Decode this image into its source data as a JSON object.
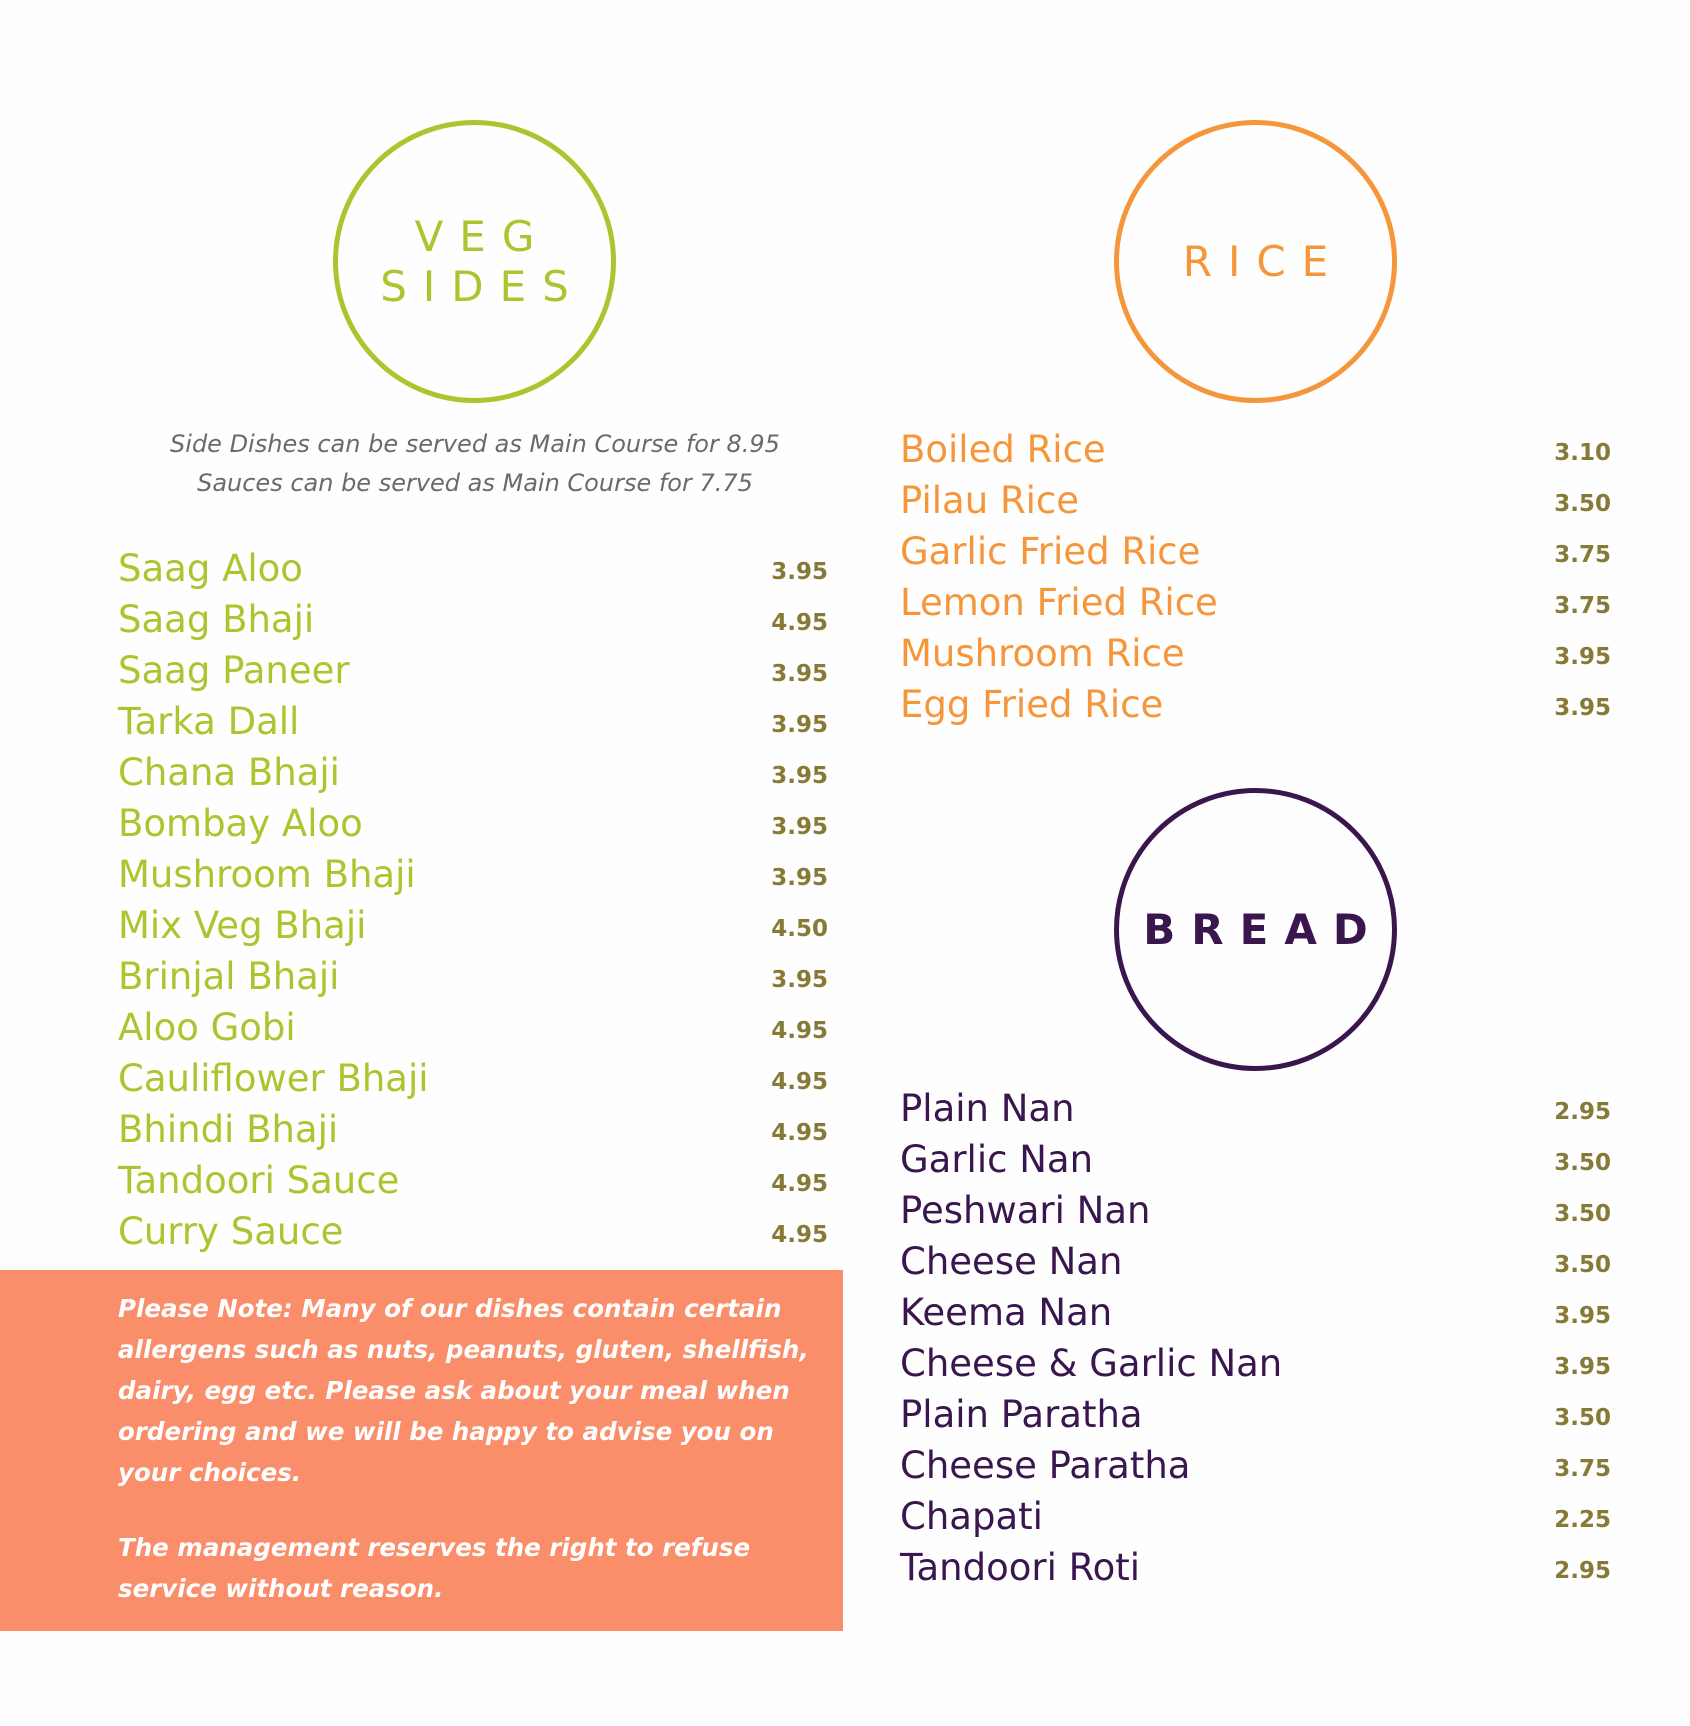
{
  "veg_sides": {
    "title_line1": "VEG",
    "title_line2": "SIDES",
    "note_line1": "Side Dishes can be served as Main Course for 8.95",
    "note_line2": "Sauces can be served as Main Course for 7.75",
    "items": [
      {
        "name": "Saag Aloo",
        "price": "3.95"
      },
      {
        "name": "Saag Bhaji",
        "price": "4.95"
      },
      {
        "name": "Saag Paneer",
        "price": "3.95"
      },
      {
        "name": "Tarka Dall",
        "price": "3.95"
      },
      {
        "name": "Chana Bhaji",
        "price": "3.95"
      },
      {
        "name": "Bombay Aloo",
        "price": "3.95"
      },
      {
        "name": "Mushroom Bhaji",
        "price": "3.95"
      },
      {
        "name": "Mix Veg Bhaji",
        "price": "4.50"
      },
      {
        "name": "Brinjal Bhaji",
        "price": "3.95"
      },
      {
        "name": "Aloo Gobi",
        "price": "4.95"
      },
      {
        "name": "Cauliflower Bhaji",
        "price": "4.95"
      },
      {
        "name": "Bhindi Bhaji",
        "price": "4.95"
      },
      {
        "name": "Tandoori Sauce",
        "price": "4.95"
      },
      {
        "name": "Curry Sauce",
        "price": "4.95"
      }
    ]
  },
  "rice": {
    "title": "RICE",
    "items": [
      {
        "name": "Boiled Rice",
        "price": "3.10"
      },
      {
        "name": "Pilau Rice",
        "price": "3.50"
      },
      {
        "name": "Garlic Fried Rice",
        "price": "3.75"
      },
      {
        "name": "Lemon Fried Rice",
        "price": "3.75"
      },
      {
        "name": "Mushroom Rice",
        "price": "3.95"
      },
      {
        "name": "Egg Fried Rice",
        "price": "3.95"
      }
    ]
  },
  "bread": {
    "title": "BREAD",
    "items": [
      {
        "name": "Plain Nan",
        "price": "2.95"
      },
      {
        "name": "Garlic Nan",
        "price": "3.50"
      },
      {
        "name": "Peshwari Nan",
        "price": "3.50"
      },
      {
        "name": "Cheese Nan",
        "price": "3.50"
      },
      {
        "name": "Keema Nan",
        "price": "3.95"
      },
      {
        "name": "Cheese & Garlic Nan",
        "price": "3.95"
      },
      {
        "name": "Plain Paratha",
        "price": "3.50"
      },
      {
        "name": "Cheese Paratha",
        "price": "3.75"
      },
      {
        "name": "Chapati",
        "price": "2.25"
      },
      {
        "name": "Tandoori Roti",
        "price": "2.95"
      }
    ]
  },
  "allergen_notice": {
    "paragraph1": "Please Note: Many of our dishes contain certain allergens such as nuts, peanuts, gluten, shellfish, dairy, egg etc. Please ask about your meal when ordering and we will be happy to advise you on your choices.",
    "paragraph2": "The management reserves the right to refuse service without reason."
  },
  "colors": {
    "veg_green": "#acc52f",
    "rice_orange": "#f6963a",
    "bread_purple": "#3a164f",
    "price_olive": "#867a36",
    "notice_background": "#fa8d6a"
  }
}
